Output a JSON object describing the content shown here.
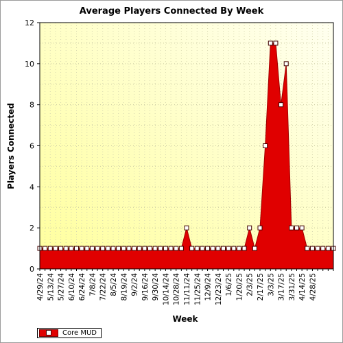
{
  "chart_data": {
    "type": "area",
    "title": "Average Players Connected By Week",
    "xlabel": "Week",
    "ylabel": "Players Connected",
    "ylim": [
      0,
      12
    ],
    "yticks": [
      "0",
      "2",
      "4",
      "6",
      "8",
      "10",
      "12"
    ],
    "x_tick_labels": [
      "4/29/24",
      "5/13/24",
      "5/27/24",
      "6/10/24",
      "6/24/24",
      "7/8/24",
      "7/22/24",
      "8/5/24",
      "8/19/24",
      "9/2/24",
      "9/16/24",
      "9/30/24",
      "10/14/24",
      "10/28/24",
      "11/11/24",
      "11/25/24",
      "12/9/24",
      "12/23/24",
      "1/6/25",
      "1/20/25",
      "2/3/25",
      "2/17/25",
      "3/3/25",
      "3/17/25",
      "3/31/25",
      "4/14/25",
      "4/28/25"
    ],
    "grid": true,
    "legend_position": "bottom-left",
    "series": [
      {
        "name": "Core MUD",
        "color": "#e00000",
        "values": [
          1,
          1,
          1,
          1,
          1,
          1,
          1,
          1,
          1,
          1,
          1,
          1,
          1,
          1,
          1,
          1,
          1,
          1,
          1,
          1,
          1,
          1,
          1,
          1,
          1,
          1,
          1,
          1,
          2,
          1,
          1,
          1,
          1,
          1,
          1,
          1,
          1,
          1,
          1,
          1,
          2,
          1,
          2,
          6,
          11,
          11,
          8,
          10,
          2,
          2,
          2,
          1,
          1,
          1,
          1,
          1,
          1
        ]
      }
    ]
  }
}
